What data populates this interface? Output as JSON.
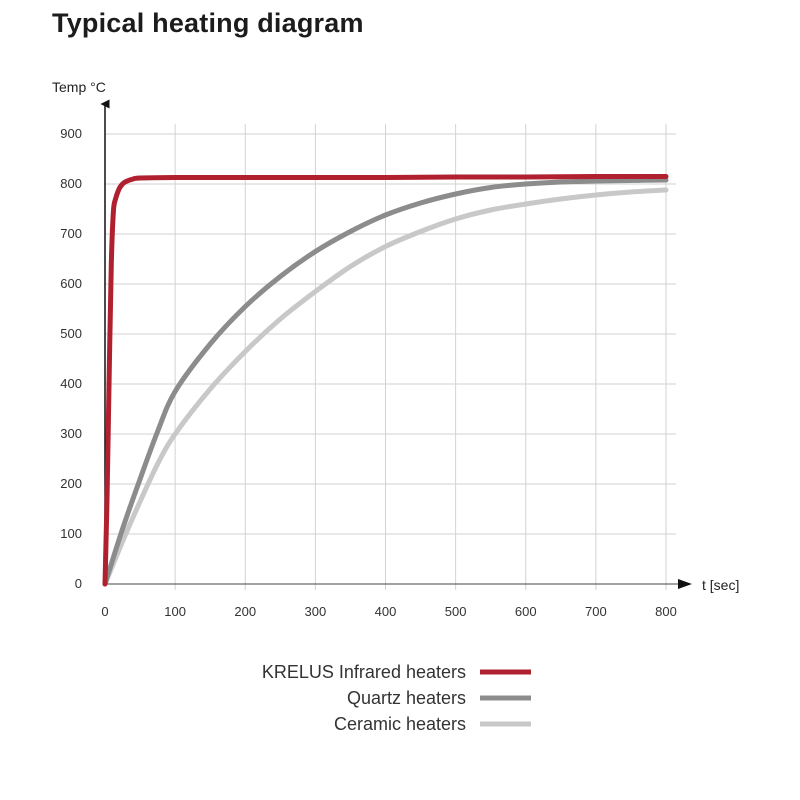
{
  "chart_data": {
    "type": "line",
    "title": "Typical heating diagram",
    "ylabel": "Temp °C",
    "xlabel": "t [sec]",
    "xlim": [
      0,
      800
    ],
    "ylim": [
      0,
      900
    ],
    "x_ticks": [
      0,
      100,
      200,
      300,
      400,
      500,
      600,
      700,
      800
    ],
    "y_ticks": [
      0,
      100,
      200,
      300,
      400,
      500,
      600,
      700,
      800,
      900
    ],
    "grid": true,
    "legend_position": "bottom-center",
    "series": [
      {
        "name": "KRELUS Infrared heaters",
        "color": "#b0202f",
        "x": [
          0,
          3,
          6,
          9,
          12,
          15,
          20,
          25,
          30,
          40,
          50,
          100,
          200,
          300,
          400,
          500,
          600,
          700,
          800
        ],
        "y": [
          0,
          180,
          420,
          640,
          745,
          770,
          790,
          800,
          805,
          810,
          812,
          813,
          813,
          813,
          813,
          814,
          814,
          815,
          815
        ]
      },
      {
        "name": "Quartz heaters",
        "color": "#8c8c8c",
        "x": [
          0,
          25,
          50,
          75,
          100,
          150,
          200,
          250,
          300,
          350,
          400,
          450,
          500,
          550,
          600,
          650,
          700,
          750,
          800
        ],
        "y": [
          0,
          110,
          210,
          305,
          385,
          480,
          555,
          615,
          665,
          705,
          738,
          762,
          780,
          793,
          800,
          804,
          806,
          807,
          808
        ]
      },
      {
        "name": "Ceramic heaters",
        "color": "#c8c8c8",
        "x": [
          0,
          25,
          50,
          75,
          100,
          150,
          200,
          250,
          300,
          350,
          400,
          450,
          500,
          550,
          600,
          650,
          700,
          750,
          800
        ],
        "y": [
          0,
          85,
          165,
          240,
          300,
          390,
          465,
          530,
          585,
          635,
          675,
          705,
          730,
          748,
          760,
          770,
          778,
          784,
          788
        ]
      }
    ]
  }
}
